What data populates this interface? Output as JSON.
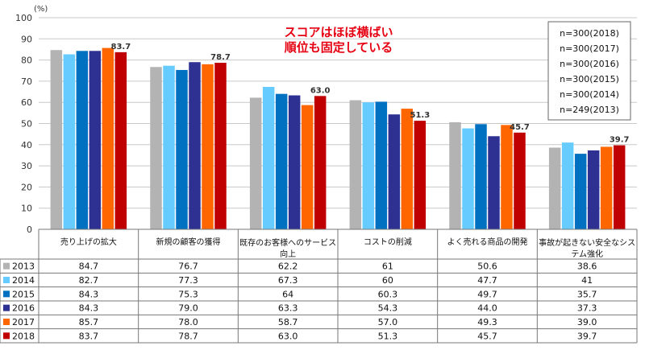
{
  "chart_data": {
    "type": "bar",
    "y_unit": "(%)",
    "ylim": [
      0,
      100
    ],
    "yticks": [
      0,
      10,
      20,
      30,
      40,
      50,
      60,
      70,
      80,
      90,
      100
    ],
    "categories": [
      [
        "売り上げの拡大"
      ],
      [
        "新規の顧客の獲得"
      ],
      [
        "既存のお客様へのサービス",
        "向上"
      ],
      [
        "コストの削減"
      ],
      [
        "よく売れる商品の開発"
      ],
      [
        "事故が起きない安全なシス",
        "テム強化"
      ]
    ],
    "series": [
      {
        "name": "2013",
        "color": "#b3b3b3",
        "values": [
          84.7,
          76.7,
          62.2,
          61,
          50.6,
          38.6
        ],
        "display": [
          "84.7",
          "76.7",
          "62.2",
          "61",
          "50.6",
          "38.6"
        ]
      },
      {
        "name": "2014",
        "color": "#66ccff",
        "values": [
          82.7,
          77.3,
          67.3,
          60,
          47.7,
          41
        ],
        "display": [
          "82.7",
          "77.3",
          "67.3",
          "60",
          "47.7",
          "41"
        ]
      },
      {
        "name": "2015",
        "color": "#0070c0",
        "values": [
          84.3,
          75.3,
          64,
          60.3,
          49.7,
          35.7
        ],
        "display": [
          "84.3",
          "75.3",
          "64",
          "60.3",
          "49.7",
          "35.7"
        ]
      },
      {
        "name": "2016",
        "color": "#2e3192",
        "values": [
          84.3,
          79.0,
          63.3,
          54.3,
          44.0,
          37.3
        ],
        "display": [
          "84.3",
          "79.0",
          "63.3",
          "54.3",
          "44.0",
          "37.3"
        ]
      },
      {
        "name": "2017",
        "color": "#ff6600",
        "values": [
          85.7,
          78.0,
          58.7,
          57.0,
          49.3,
          39.0
        ],
        "display": [
          "85.7",
          "78.0",
          "58.7",
          "57.0",
          "49.3",
          "39.0"
        ]
      },
      {
        "name": "2018",
        "color": "#c00000",
        "values": [
          83.7,
          78.7,
          63.0,
          51.3,
          45.7,
          39.7
        ],
        "display": [
          "83.7",
          "78.7",
          "63.0",
          "51.3",
          "45.7",
          "39.7"
        ]
      }
    ],
    "data_labels": [
      "83.7",
      "78.7",
      "63.0",
      "51.3",
      "45.7",
      "39.7"
    ],
    "annotation": [
      "スコアはほぼ横ばい",
      "順位も固定している"
    ],
    "legend": [
      "n=300(2018)",
      "n=300(2017)",
      "n=300(2016)",
      "n=300(2015)",
      "n=300(2014)",
      "n=249(2013)"
    ],
    "grid": true,
    "legend_position": "top-right"
  }
}
